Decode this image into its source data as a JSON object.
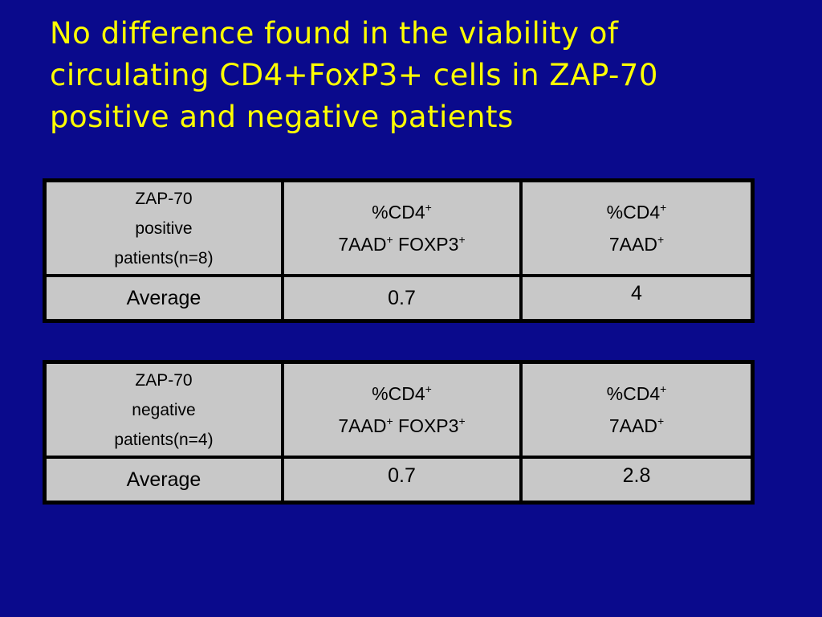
{
  "title": {
    "line1": "No difference found in the viability  of",
    "line2": "circulating CD4+FoxP3+ cells in ZAP-70",
    "line3": "positive and negative patients"
  },
  "tables": [
    {
      "group": [
        "ZAP-70",
        "positive",
        "patients(n=8)"
      ],
      "col2": {
        "line1": "%CD4",
        "line2a": "7AAD",
        "line2b": " FOXP3"
      },
      "col3": {
        "line1": "%CD4",
        "line2": "7AAD"
      },
      "sup": "+",
      "row": {
        "label": "Average",
        "val1": "0.7",
        "val2": "4"
      }
    },
    {
      "group": [
        "ZAP-70",
        "negative",
        "patients(n=4)"
      ],
      "col2": {
        "line1": "%CD4",
        "line2a": "7AAD",
        "line2b": " FOXP3"
      },
      "col3": {
        "line1": "%CD4",
        "line2": "7AAD"
      },
      "sup": "+",
      "row": {
        "label": "Average",
        "val1": "0.7",
        "val2": "2.8"
      }
    }
  ],
  "colors": {
    "background": "#0a0a8c",
    "title": "#ffff00",
    "table_fill": "#c8c8c8",
    "average_text": "#1c5cf0"
  }
}
